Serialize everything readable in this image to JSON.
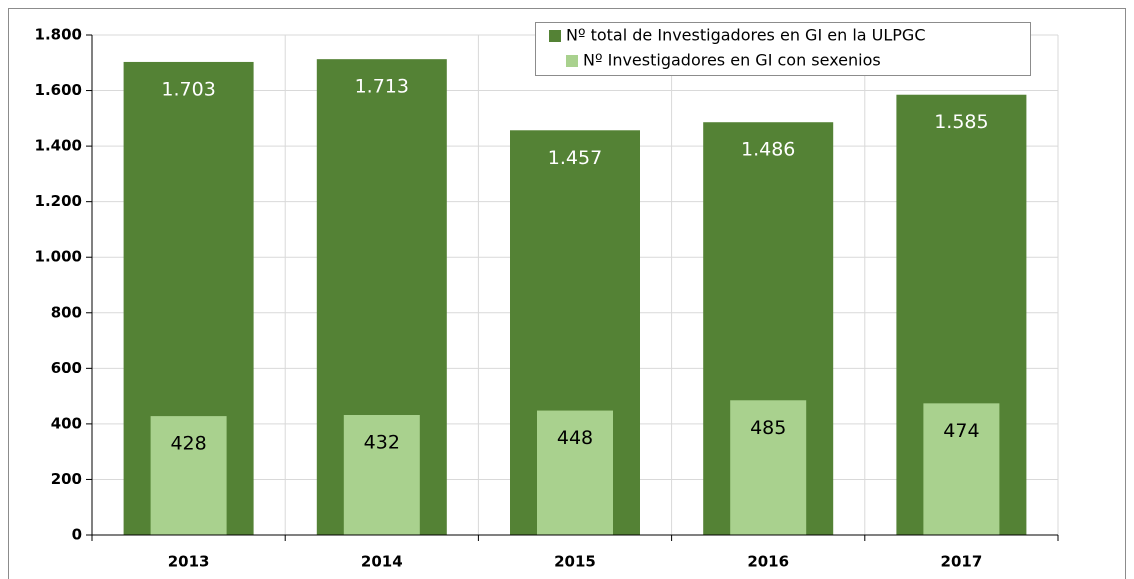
{
  "chart_data": {
    "type": "bar",
    "categories": [
      "2013",
      "2014",
      "2015",
      "2016",
      "2017"
    ],
    "series": [
      {
        "name": "Nº total de Investigadores en GI en la ULPGC",
        "color": "#548235",
        "values": [
          1703,
          1713,
          1457,
          1486,
          1585
        ],
        "value_labels": [
          "1.703",
          "1.713",
          "1.457",
          "1.486",
          "1.585"
        ]
      },
      {
        "name": "Nº Investigadores en GI con sexenios",
        "color": "#a9d18e",
        "values": [
          428,
          432,
          448,
          485,
          474
        ]
      }
    ],
    "ylim": [
      0,
      1800
    ],
    "yticks": [
      0,
      200,
      400,
      600,
      800,
      {
        "value": 1000,
        "label": "1.000"
      },
      {
        "value": 1200,
        "label": "1.200"
      },
      {
        "value": 1400,
        "label": "1.400"
      },
      {
        "value": 1600,
        "label": "1.600"
      },
      {
        "value": 1800,
        "label": "1.800"
      }
    ],
    "grid": true,
    "legend": "top-right"
  }
}
